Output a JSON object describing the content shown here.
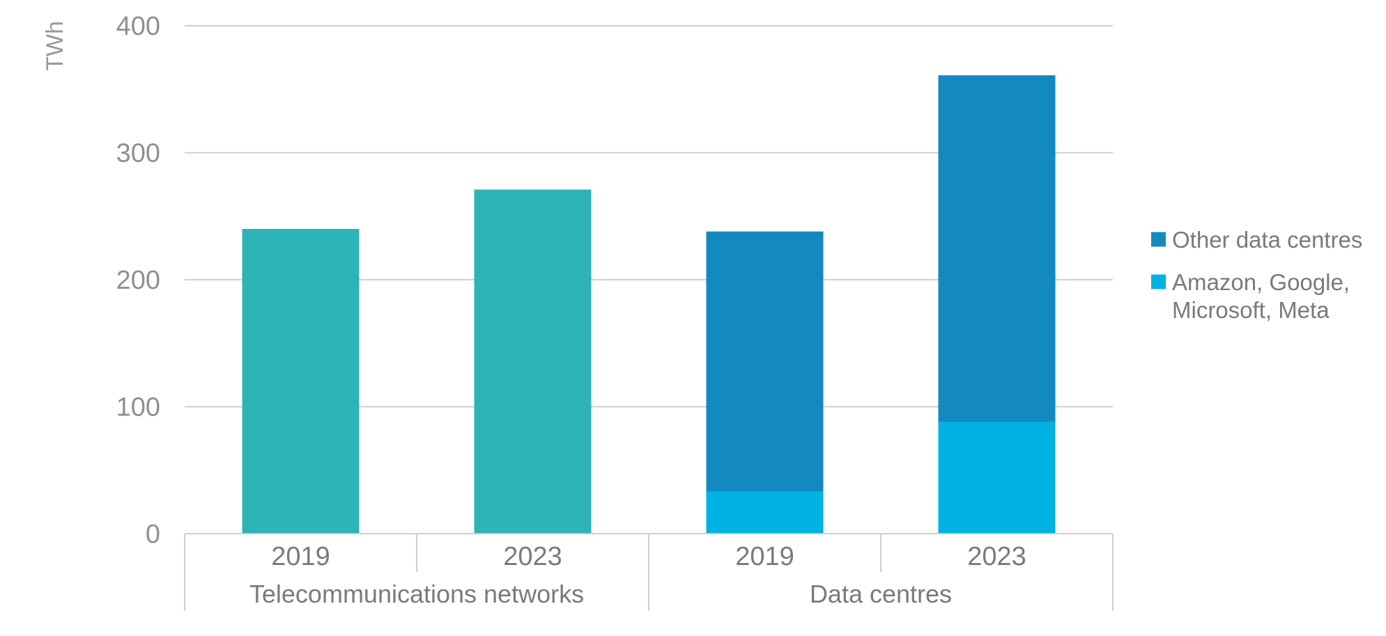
{
  "chart_data": {
    "type": "bar",
    "stacked": true,
    "ylabel": "TWh",
    "ylim": [
      0,
      400
    ],
    "yticks": [
      0,
      100,
      200,
      300,
      400
    ],
    "grid": true,
    "legend_position": "right",
    "groups": [
      {
        "label": "Telecommunications networks",
        "bars": [
          {
            "category": "2019",
            "segments": [
              {
                "series": "Telecommunications networks",
                "value": 240
              }
            ]
          },
          {
            "category": "2023",
            "segments": [
              {
                "series": "Telecommunications networks",
                "value": 271
              }
            ]
          }
        ]
      },
      {
        "label": "Data centres",
        "bars": [
          {
            "category": "2019",
            "segments": [
              {
                "series": "Amazon, Google, Microsoft, Meta",
                "value": 33
              },
              {
                "series": "Other data centres",
                "value": 205
              }
            ]
          },
          {
            "category": "2023",
            "segments": [
              {
                "series": "Amazon, Google, Microsoft, Meta",
                "value": 88
              },
              {
                "series": "Other data centres",
                "value": 273
              }
            ]
          }
        ]
      }
    ],
    "legend": [
      {
        "name": "Other data centres",
        "lines": [
          "Other data centres"
        ],
        "color": "#1289c1"
      },
      {
        "name": "Amazon, Google, Microsoft, Meta",
        "lines": [
          "Amazon, Google,",
          "Microsoft, Meta"
        ],
        "color": "#00b2e3"
      }
    ],
    "colors": {
      "Telecommunications networks": "#2db4b6",
      "Other data centres": "#1289c1",
      "Amazon, Google, Microsoft, Meta": "#00b2e3"
    }
  }
}
